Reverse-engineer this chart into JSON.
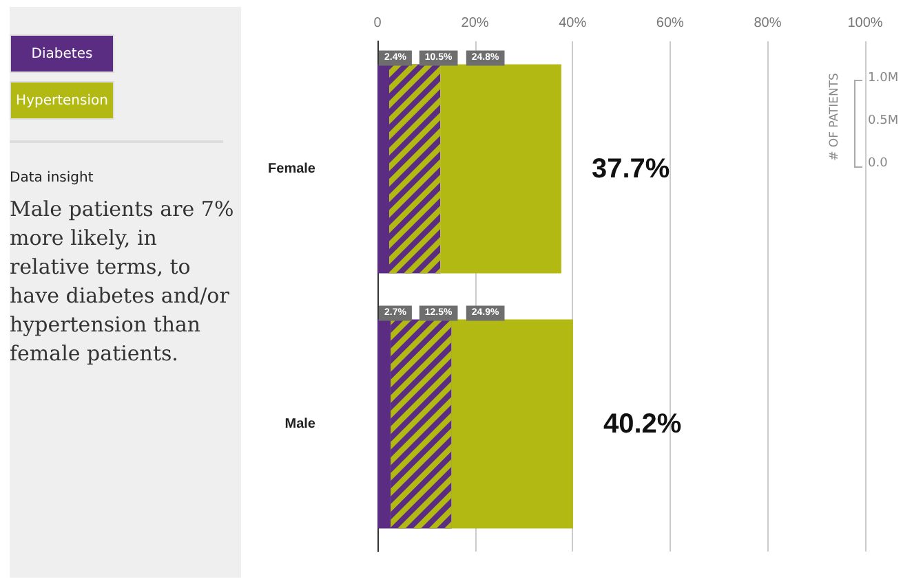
{
  "chart_data": {
    "type": "bar",
    "orientation": "horizontal",
    "stacked": true,
    "categories": [
      "Female",
      "Male"
    ],
    "series": [
      {
        "name": "Diabetes",
        "color": "#5a2d82",
        "values": [
          2.4,
          2.7
        ],
        "value_labels": [
          "2.4%",
          "2.7%"
        ]
      },
      {
        "color": "#5a2d82",
        "values": [
          10.5,
          12.5
        ],
        "value_labels": [
          "10.5%",
          "12.5%"
        ]
      },
      {
        "name": "Hypertension",
        "color": "#b3b913",
        "values": [
          24.8,
          24.9
        ],
        "value_labels": [
          "24.8%",
          "24.9%"
        ]
      }
    ],
    "totals": [
      "37.7%",
      "40.2%"
    ],
    "xlim": [
      0,
      100
    ],
    "xticks": [
      {
        "value": 0,
        "label": "0"
      },
      {
        "value": 20,
        "label": "20%"
      },
      {
        "value": 40,
        "label": "40%"
      },
      {
        "value": 60,
        "label": "60%"
      },
      {
        "value": 80,
        "label": "80%"
      },
      {
        "value": 100,
        "label": "100%"
      }
    ],
    "grid": "x",
    "legend": "top left",
    "annotations": [
      "Data insight",
      "Male patients are 7% more likely, in relative terms, to have diabetes and/or hypertension than female patients.",
      "# OF PATIENTS",
      "1.0M",
      "0.5M",
      "0.0"
    ]
  }
}
